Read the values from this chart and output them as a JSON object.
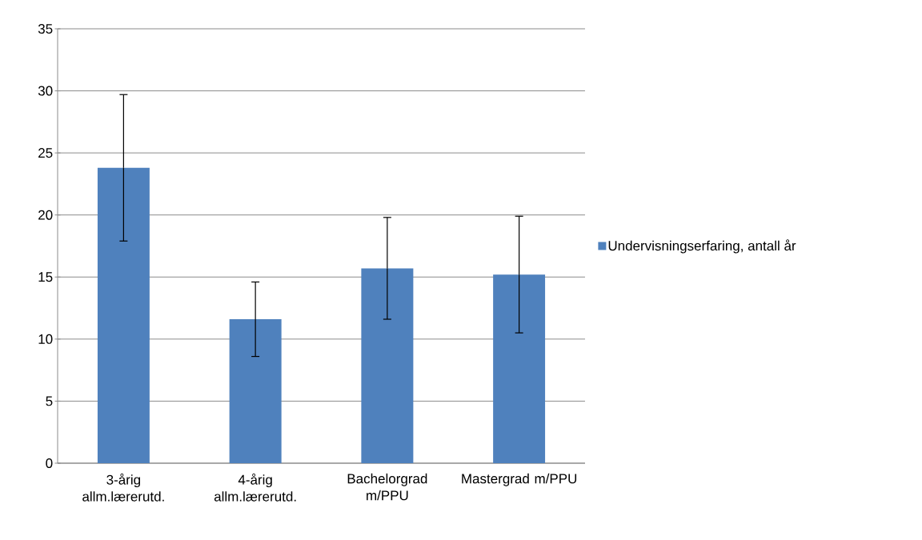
{
  "chart_data": {
    "type": "bar",
    "categories": [
      "3-årig allm.lærerutd.",
      "4-årig allm.lærerutd.",
      "Bachelorgrad m/PPU",
      "Mastergrad m/PPU"
    ],
    "series": [
      {
        "name": "Undervisningserfaring, antall år",
        "color": "#4f81bd",
        "values": [
          23.8,
          11.6,
          15.7,
          15.2
        ],
        "errors": [
          5.9,
          3.0,
          4.1,
          4.7
        ]
      }
    ],
    "ylim": [
      0,
      35
    ],
    "yticks": [
      0,
      5,
      10,
      15,
      20,
      25,
      30,
      35
    ],
    "grid": "y",
    "legend": "right"
  }
}
